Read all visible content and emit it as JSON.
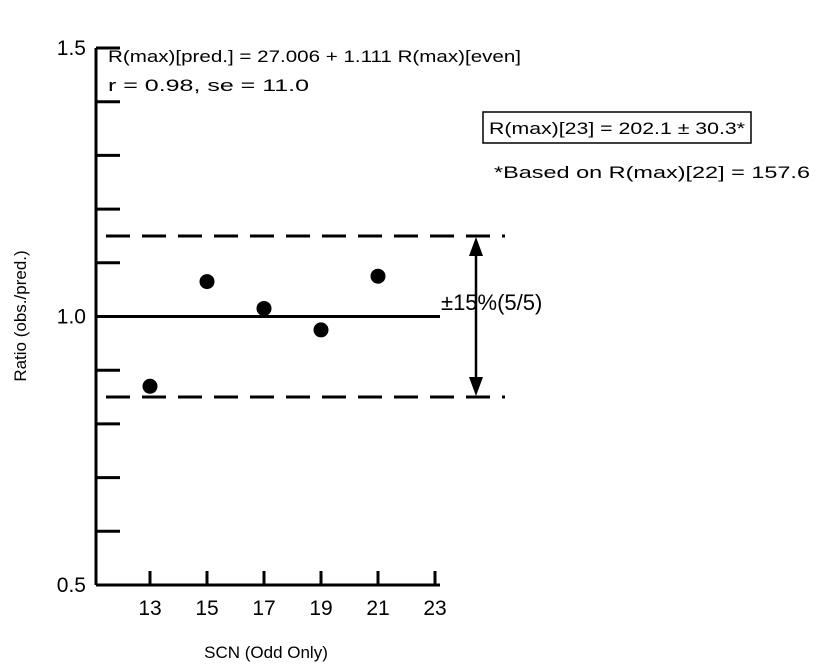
{
  "chart_data": {
    "type": "scatter",
    "xlabel": "SCN (Odd Only)",
    "ylabel": "Ratio (obs./pred.)",
    "xlim": [
      11,
      23
    ],
    "ylim": [
      0.5,
      1.5
    ],
    "x_ticks": [
      13,
      15,
      17,
      19,
      21,
      23
    ],
    "y_tick_labels": [
      {
        "value": 0.5,
        "label": "0.5"
      },
      {
        "value": 1.0,
        "label": "1.0"
      },
      {
        "value": 1.5,
        "label": "1.5"
      }
    ],
    "y_minor_ticks": [
      0.6,
      0.7,
      0.8,
      0.9,
      1.1,
      1.2,
      1.3,
      1.4
    ],
    "points": [
      {
        "x": 13,
        "y": 0.87
      },
      {
        "x": 15,
        "y": 1.065
      },
      {
        "x": 17,
        "y": 1.015
      },
      {
        "x": 19,
        "y": 0.975
      },
      {
        "x": 21,
        "y": 1.075
      }
    ],
    "reference_line": {
      "y": 1.0,
      "style": "solid"
    },
    "band_lines": [
      {
        "y": 1.15,
        "style": "dashed"
      },
      {
        "y": 0.85,
        "style": "dashed"
      }
    ],
    "band_label": "±15%(5/5)",
    "annotations": {
      "equation": "R(max)[pred.] = 27.006 + 1.111 R(max)[even]",
      "stats": "r = 0.98, se = 11.0",
      "boxed": "R(max)[23] = 202.1 ± 30.3*",
      "footnote": "*Based on R(max)[22] = 157.6"
    },
    "grid": false,
    "legend": "none"
  }
}
